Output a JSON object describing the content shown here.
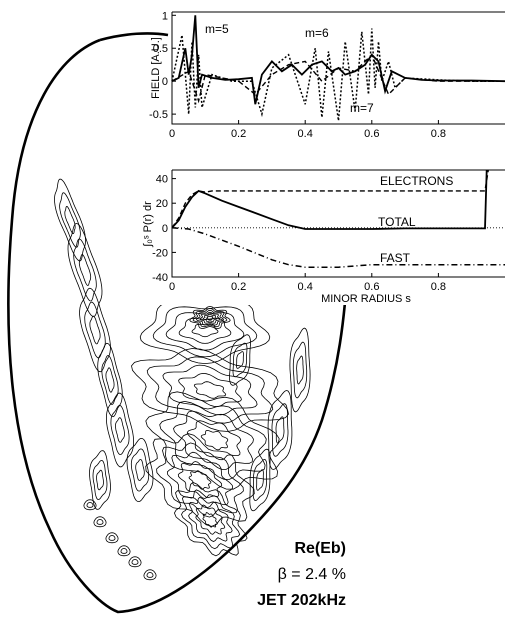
{
  "chart_data": [
    {
      "type": "contour",
      "title": "Re(Eb)",
      "annotations": [
        "Re(Eb)",
        "β = 2.4 %",
        "JET 202kHz"
      ]
    },
    {
      "type": "line",
      "ylabel": "FIELD [A.U.]",
      "xlim": [
        0,
        1.0
      ],
      "ylim": [
        -0.65,
        1.05
      ],
      "xticks": [
        "0",
        "0.2",
        "0.4",
        "0.6",
        "0.8"
      ],
      "yticks": [
        "1",
        "0.5",
        "0",
        "-0.5"
      ],
      "annotations": [
        "m=5",
        "m=6",
        "m=7"
      ],
      "series": [
        {
          "style": "solid",
          "x": [
            0,
            0.02,
            0.04,
            0.05,
            0.06,
            0.07,
            0.08,
            0.09,
            0.12,
            0.16,
            0.2,
            0.24,
            0.25,
            0.27,
            0.3,
            0.33,
            0.36,
            0.39,
            0.42,
            0.45,
            0.48,
            0.5,
            0.52,
            0.55,
            0.58,
            0.6,
            0.62,
            0.64,
            0.66,
            0.7,
            0.75,
            0.8,
            0.9,
            1.0
          ],
          "y": [
            0.0,
            0.05,
            0.5,
            0.1,
            0.4,
            1.0,
            -0.1,
            0.1,
            0.05,
            0.02,
            0.03,
            0.05,
            -0.35,
            0.1,
            0.3,
            0.15,
            0.25,
            0.1,
            0.25,
            0.3,
            0.15,
            0.2,
            0.1,
            0.15,
            0.25,
            0.4,
            0.3,
            -0.15,
            0.15,
            0.05,
            0.02,
            0.01,
            0.01,
            0.0
          ]
        },
        {
          "style": "dotted",
          "x": [
            0,
            0.03,
            0.05,
            0.06,
            0.07,
            0.08,
            0.09,
            0.12,
            0.18,
            0.24,
            0.27,
            0.3,
            0.35,
            0.4,
            0.43,
            0.45,
            0.47,
            0.5,
            0.52,
            0.55,
            0.57,
            0.59,
            0.6,
            0.61,
            0.62,
            0.63,
            0.65,
            0.67,
            0.7,
            0.8,
            0.9,
            1.0
          ],
          "y": [
            0.0,
            0.7,
            -0.5,
            0.6,
            -0.4,
            0.4,
            -0.4,
            0.1,
            0.0,
            0.0,
            -0.5,
            0.2,
            0.4,
            -0.35,
            0.5,
            -0.55,
            0.45,
            -0.6,
            0.6,
            -0.45,
            0.75,
            -0.2,
            0.8,
            -0.1,
            0.6,
            0.0,
            0.3,
            -0.1,
            0.05,
            0.02,
            0.0,
            0.0
          ]
        },
        {
          "style": "dashed",
          "x": [
            0,
            0.05,
            0.08,
            0.1,
            0.15,
            0.2,
            0.25,
            0.3,
            0.35,
            0.4,
            0.45,
            0.5,
            0.55,
            0.6,
            0.65,
            0.7,
            0.8,
            0.9,
            1.0
          ],
          "y": [
            0.0,
            0.15,
            -0.3,
            0.1,
            0.05,
            0.0,
            -0.2,
            0.1,
            0.25,
            0.3,
            0.0,
            0.2,
            0.15,
            0.4,
            -0.2,
            0.05,
            0.0,
            0.0,
            0.0
          ]
        }
      ]
    },
    {
      "type": "line",
      "xlabel": "MINOR RADIUS  s",
      "ylabel": "∫₀ˢ P(r) dr",
      "xlim": [
        0,
        1.0
      ],
      "ylim": [
        -40,
        47
      ],
      "xticks": [
        "0",
        "0.2",
        "0.4",
        "0.6",
        "0.8"
      ],
      "yticks": [
        "40",
        "20",
        "0",
        "-20",
        "-40"
      ],
      "series": [
        {
          "name": "ELECTRONS",
          "style": "dashed",
          "x": [
            0,
            0.02,
            0.04,
            0.06,
            0.08,
            0.1,
            0.12,
            0.2,
            0.4,
            0.6,
            0.8,
            0.94,
            0.95
          ],
          "y": [
            0,
            8,
            20,
            27,
            30,
            29,
            30,
            30,
            30,
            30,
            30,
            30,
            47
          ]
        },
        {
          "name": "TOTAL",
          "style": "solid",
          "x": [
            0,
            0.02,
            0.04,
            0.06,
            0.08,
            0.1,
            0.15,
            0.2,
            0.25,
            0.3,
            0.35,
            0.4,
            0.5,
            0.6,
            0.7,
            0.8,
            0.9,
            0.94,
            0.945
          ],
          "y": [
            0,
            6,
            17,
            25,
            30,
            28,
            22,
            17,
            12,
            7,
            2,
            -1,
            -1,
            -1,
            -0.5,
            -0.5,
            -0.5,
            -0.5,
            47
          ]
        },
        {
          "name": "FAST",
          "style": "dashdot",
          "x": [
            0,
            0.05,
            0.1,
            0.2,
            0.3,
            0.35,
            0.4,
            0.5,
            0.6,
            0.7,
            0.8,
            0.9,
            1.0
          ],
          "y": [
            0,
            -1,
            -5,
            -15,
            -26,
            -30,
            -32,
            -32,
            -30,
            -30,
            -30,
            -30,
            -30
          ]
        },
        {
          "name": "",
          "style": "dotted-zero",
          "x": [
            0,
            1.0
          ],
          "y": [
            0,
            0
          ]
        }
      ]
    }
  ]
}
